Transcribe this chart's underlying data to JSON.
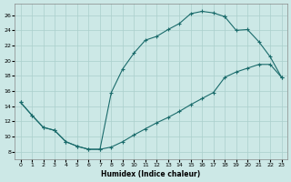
{
  "xlabel": "Humidex (Indice chaleur)",
  "background_color": "#cce8e6",
  "grid_color": "#aacfcc",
  "line_color": "#1a6b6b",
  "xlim": [
    -0.5,
    23.5
  ],
  "ylim": [
    7,
    27.5
  ],
  "xticks": [
    0,
    1,
    2,
    3,
    4,
    5,
    6,
    7,
    8,
    9,
    10,
    11,
    12,
    13,
    14,
    15,
    16,
    17,
    18,
    19,
    20,
    21,
    22,
    23
  ],
  "yticks": [
    8,
    10,
    12,
    14,
    16,
    18,
    20,
    22,
    24,
    26
  ],
  "line_upper_x": [
    0,
    1,
    2,
    3,
    4,
    5,
    6,
    7,
    8,
    9,
    10,
    11,
    12,
    13,
    14,
    15,
    16,
    17,
    18
  ],
  "line_upper_y": [
    14.5,
    12.8,
    11.2,
    10.8,
    9.3,
    8.7,
    8.3,
    8.3,
    15.8,
    18.9,
    21.0,
    22.7,
    23.2,
    24.1,
    24.9,
    26.2,
    26.5,
    26.3,
    25.8
  ],
  "line_lower_x": [
    0,
    1,
    2,
    3,
    4,
    5,
    6,
    7,
    8,
    9,
    10,
    11,
    12,
    13,
    14,
    15,
    16,
    17,
    18,
    19,
    20,
    21,
    22,
    23
  ],
  "line_lower_y": [
    14.5,
    12.8,
    11.2,
    10.8,
    9.3,
    8.7,
    8.3,
    8.3,
    8.6,
    9.3,
    10.2,
    11.0,
    11.8,
    12.5,
    13.3,
    14.2,
    15.0,
    15.8,
    17.8,
    18.5,
    19.0,
    19.5,
    19.5,
    17.8
  ],
  "line_right_x": [
    18,
    19,
    20,
    21,
    22,
    23
  ],
  "line_right_y": [
    25.8,
    24.0,
    24.1,
    22.5,
    20.5,
    17.8
  ]
}
